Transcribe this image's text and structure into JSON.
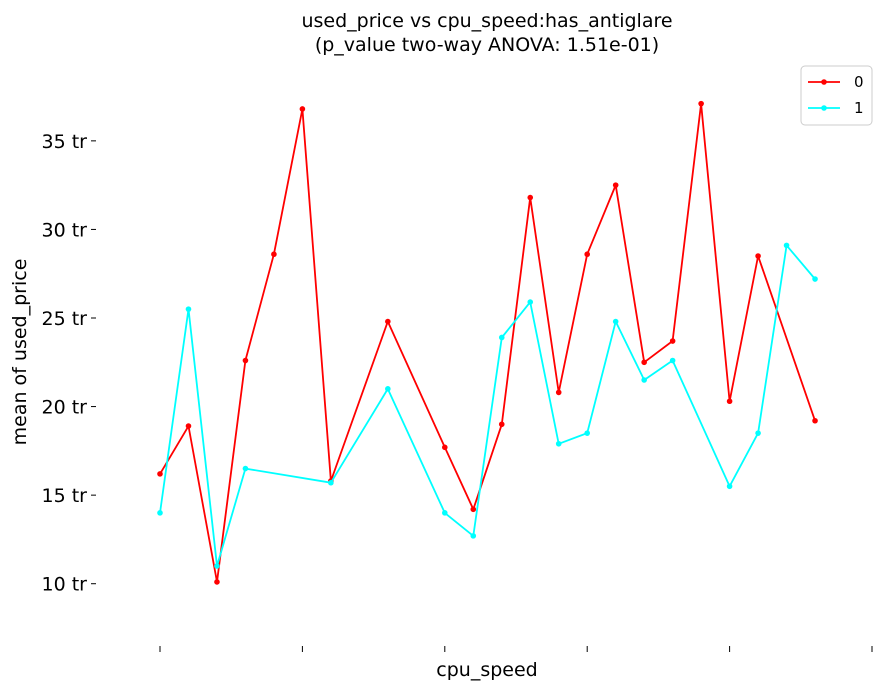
{
  "chart_data": {
    "type": "line",
    "title": "used_price vs cpu_speed:has_antiglare",
    "subtitle": "(p_value two-way ANOVA: 1.51e-01)",
    "xlabel": "cpu_speed",
    "ylabel": "mean of used_price",
    "xlim": [
      0,
      25
    ],
    "ylim": [
      7.5,
      39
    ],
    "x_ticks": [
      0,
      5,
      10,
      15,
      20,
      25
    ],
    "y_ticks": [
      10,
      15,
      20,
      25,
      30,
      35
    ],
    "y_tick_suffix": " tr",
    "legend_placement": "top-right",
    "grid": false,
    "series": [
      {
        "name": "0",
        "color": "#ff0000",
        "x": [
          0,
          1,
          2,
          3,
          4,
          5,
          6,
          8,
          10,
          11,
          12,
          13,
          14,
          15,
          16,
          17,
          18,
          19,
          20,
          21,
          23
        ],
        "y": [
          16.2,
          18.9,
          10.1,
          22.6,
          28.6,
          36.8,
          15.8,
          24.8,
          17.7,
          14.2,
          19.0,
          31.8,
          20.8,
          28.6,
          32.5,
          22.5,
          23.7,
          37.1,
          20.3,
          28.5,
          19.2
        ]
      },
      {
        "name": "1",
        "color": "#00ffff",
        "x": [
          0,
          1,
          2,
          3,
          6,
          8,
          10,
          11,
          12,
          13,
          14,
          15,
          16,
          17,
          18,
          20,
          21,
          22,
          23
        ],
        "y": [
          14.0,
          25.5,
          11.0,
          16.5,
          15.7,
          21.0,
          14.0,
          12.7,
          23.9,
          25.9,
          17.9,
          18.5,
          24.8,
          21.5,
          22.6,
          15.5,
          18.5,
          29.1,
          27.2
        ]
      }
    ]
  }
}
